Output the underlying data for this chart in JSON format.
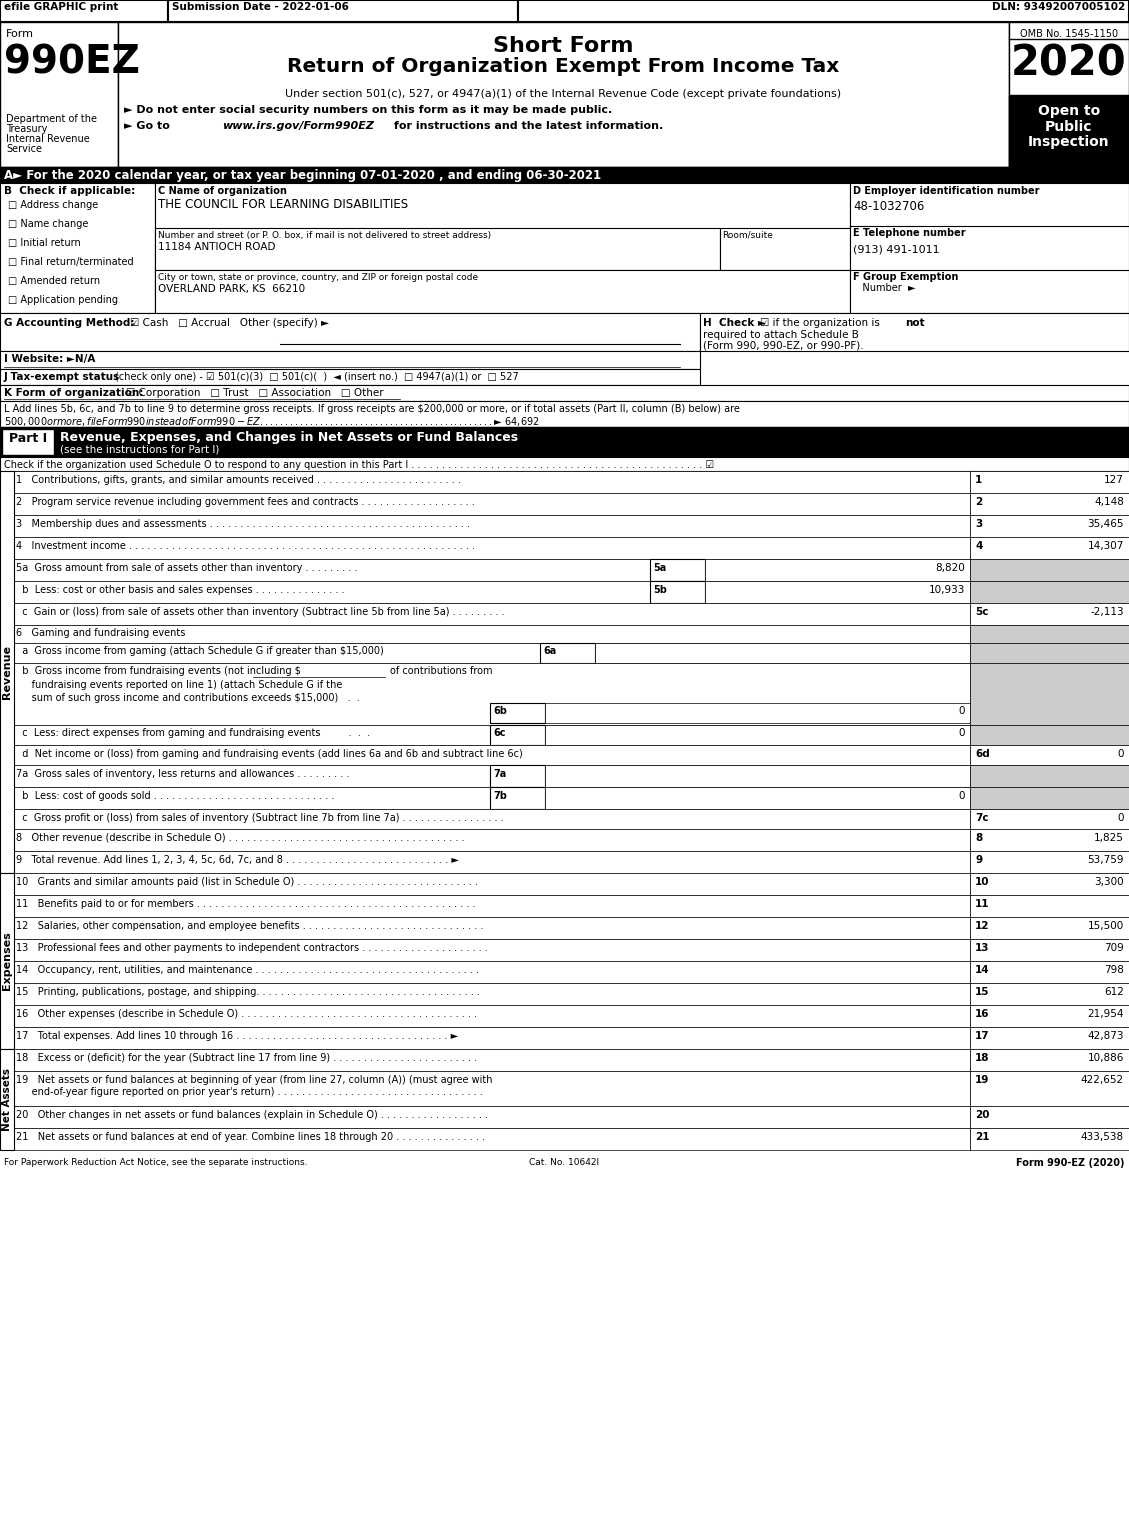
{
  "title_top_bar": "efile GRAPHIC print    Submission Date - 2022-01-06                                              DLN: 93492007005102",
  "form_number": "990EZ",
  "form_label": "Form",
  "short_form_title": "Short Form",
  "main_title": "Return of Organization Exempt From Income Tax",
  "subtitle": "Under section 501(c), 527, or 4947(a)(1) of the Internal Revenue Code (except private foundations)",
  "year": "2020",
  "omb": "OMB No. 1545-1150",
  "open_to": "Open to\nPublic\nInspection",
  "bullet1": "► Do not enter social security numbers on this form as it may be made public.",
  "bullet2_a": "► Go to ",
  "bullet2_url": "www.irs.gov/Form990EZ",
  "bullet2_b": " for instructions and the latest information.",
  "dept_label": "Department of the\nTreasury\nInternal Revenue\nService",
  "section_A": "A► For the 2020 calendar year, or tax year beginning 07-01-2020 , and ending 06-30-2021",
  "B_label": "B  Check if applicable:",
  "checkboxes_B": [
    "□ Address change",
    "□ Name change",
    "□ Initial return",
    "□ Final return/terminated",
    "□ Amended return",
    "□ Application pending"
  ],
  "C_label": "C Name of organization",
  "org_name": "THE COUNCIL FOR LEARNING DISABILITIES",
  "street_label": "Number and street (or P. O. box, if mail is not delivered to street address)",
  "room_label": "Room/suite",
  "street_value": "11184 ANTIOCH ROAD",
  "city_label": "City or town, state or province, country, and ZIP or foreign postal code",
  "city_value": "OVERLAND PARK, KS  66210",
  "D_label": "D Employer identification number",
  "ein": "48-1032706",
  "E_label": "E Telephone number",
  "phone": "(913) 491-1011",
  "F_label": "F Group Exemption",
  "F_label2": "   Number  ►",
  "G_label": "G Accounting Method:",
  "G_content": "☑ Cash   □ Accrual   Other (specify) ►",
  "H_label": "H  Check ►",
  "H_content1": "☑ if the organization is ",
  "H_content1b": "not",
  "H_content2": "required to attach Schedule B",
  "H_content3": "(Form 990, 990-EZ, or 990-PF).",
  "I_label": "I Website: ►N/A",
  "J_label": "J Tax-exempt status",
  "J_content": "(check only one) - ☑ 501(c)(3)  □ 501(c)(  )  ◄ (insert no.)  □ 4947(a)(1) or  □ 527",
  "K_label": "K Form of organization:",
  "K_content": "☑ Corporation   □ Trust   □ Association   □ Other",
  "L_line1": "L Add lines 5b, 6c, and 7b to line 9 to determine gross receipts. If gross receipts are $200,000 or more, or if total assets (Part II, column (B) below) are",
  "L_line2": "$500,000 or more, file Form 990 instead of Form 990-EZ . . . . . . . . . . . . . . . . . . . . . . . . . . . . . . . . . . . . . . . . . . . . . . . ► $ 64,692",
  "part1_heading": "Revenue, Expenses, and Changes in Net Assets or Fund Balances",
  "part1_sub": "(see the instructions for Part I)",
  "part1_check": "Check if the organization used Schedule O to respond to any question in this Part I . . . . . . . . . . . . . . . . . . . . . . . . . . . . . . . . . . . . . . . . . . . . . . . . ☑",
  "revenue_lines": [
    {
      "num": "1",
      "label": "Contributions, gifts, grants, and similar amounts received . . . . . . . . . . . . . . . . . . . . . . . .",
      "value": "127",
      "line_num": "1"
    },
    {
      "num": "2",
      "label": "Program service revenue including government fees and contracts . . . . . . . . . . . . . . . . . . .",
      "value": "4,148",
      "line_num": "2"
    },
    {
      "num": "3",
      "label": "Membership dues and assessments . . . . . . . . . . . . . . . . . . . . . . . . . . . . . . . . . . . . . . . . . . .",
      "value": "35,465",
      "line_num": "3"
    },
    {
      "num": "4",
      "label": "Investment income . . . . . . . . . . . . . . . . . . . . . . . . . . . . . . . . . . . . . . . . . . . . . . . . . . . . . . . . .",
      "value": "14,307",
      "line_num": "4"
    }
  ],
  "line5a_label": "5a  Gross amount from sale of assets other than inventory . . . . . . . . .",
  "line5a_val": "8,820",
  "line5b_label": "  b  Less: cost or other basis and sales expenses . . . . . . . . . . . . . . .",
  "line5b_val": "10,933",
  "line5c_label": "  c  Gain or (loss) from sale of assets other than inventory (Subtract line 5b from line 5a) . . . . . . . . .",
  "line5c_val": "-2,113",
  "line6_label": "6   Gaming and fundraising events",
  "line6a_label": "  a  Gross income from gaming (attach Schedule G if greater than $15,000)",
  "line6b_line1": "  b  Gross income from fundraising events (not including $",
  "line6b_line1b": "of contributions from",
  "line6b_line2": "     fundraising events reported on line 1) (attach Schedule G if the",
  "line6b_line3": "     sum of such gross income and contributions exceeds $15,000)   .  .",
  "line6b_val": "0",
  "line6c_label": "  c  Less: direct expenses from gaming and fundraising events         .  .  .",
  "line6c_val": "0",
  "line6d_label": "  d  Net income or (loss) from gaming and fundraising events (add lines 6a and 6b and subtract line 6c)",
  "line6d_val": "0",
  "line7a_label": "7a  Gross sales of inventory, less returns and allowances . . . . . . . . .",
  "line7b_label": "  b  Less: cost of goods sold . . . . . . . . . . . . . . . . . . . . . . . . . . . . . .",
  "line7b_val": "0",
  "line7c_label": "  c  Gross profit or (loss) from sales of inventory (Subtract line 7b from line 7a) . . . . . . . . . . . . . . . . .",
  "line7c_val": "0",
  "line8_label": "8   Other revenue (describe in Schedule O) . . . . . . . . . . . . . . . . . . . . . . . . . . . . . . . . . . . . . . .",
  "line8_val": "1,825",
  "line9_label": "9   Total revenue. Add lines 1, 2, 3, 4, 5c, 6d, 7c, and 8 . . . . . . . . . . . . . . . . . . . . . . . . . . . ►",
  "line9_val": "53,759",
  "expense_lines": [
    {
      "num": "10",
      "label": "Grants and similar amounts paid (list in Schedule O) . . . . . . . . . . . . . . . . . . . . . . . . . . . . . .",
      "value": "3,300",
      "line_num": "10"
    },
    {
      "num": "11",
      "label": "Benefits paid to or for members . . . . . . . . . . . . . . . . . . . . . . . . . . . . . . . . . . . . . . . . . . . . . .",
      "value": "",
      "line_num": "11"
    },
    {
      "num": "12",
      "label": "Salaries, other compensation, and employee benefits . . . . . . . . . . . . . . . . . . . . . . . . . . . . . .",
      "value": "15,500",
      "line_num": "12"
    },
    {
      "num": "13",
      "label": "Professional fees and other payments to independent contractors . . . . . . . . . . . . . . . . . . . . .",
      "value": "709",
      "line_num": "13"
    },
    {
      "num": "14",
      "label": "Occupancy, rent, utilities, and maintenance . . . . . . . . . . . . . . . . . . . . . . . . . . . . . . . . . . . . .",
      "value": "798",
      "line_num": "14"
    },
    {
      "num": "15",
      "label": "Printing, publications, postage, and shipping. . . . . . . . . . . . . . . . . . . . . . . . . . . . . . . . . . . . .",
      "value": "612",
      "line_num": "15"
    },
    {
      "num": "16",
      "label": "Other expenses (describe in Schedule O) . . . . . . . . . . . . . . . . . . . . . . . . . . . . . . . . . . . . . . .",
      "value": "21,954",
      "line_num": "16"
    },
    {
      "num": "17",
      "label": "Total expenses. Add lines 10 through 16 . . . . . . . . . . . . . . . . . . . . . . . . . . . . . . . . . . . ►",
      "value": "42,873",
      "line_num": "17"
    }
  ],
  "net_asset_lines": [
    {
      "num": "18",
      "label": "Excess or (deficit) for the year (Subtract line 17 from line 9) . . . . . . . . . . . . . . . . . . . . . . . .",
      "value": "10,886",
      "line_num": "18"
    },
    {
      "num": "19",
      "label1": "Net assets or fund balances at beginning of year (from line 27, column (A)) (must agree with",
      "label2": "end-of-year figure reported on prior year's return) . . . . . . . . . . . . . . . . . . . . . . . . . . . . . . . . . .",
      "value": "422,652",
      "line_num": "19"
    },
    {
      "num": "20",
      "label": "Other changes in net assets or fund balances (explain in Schedule O) . . . . . . . . . . . . . . . . . .",
      "value": "",
      "line_num": "20"
    },
    {
      "num": "21",
      "label": "Net assets or fund balances at end of year. Combine lines 18 through 20 . . . . . . . . . . . . . . .",
      "value": "433,538",
      "line_num": "21"
    }
  ],
  "footer_left": "For Paperwork Reduction Act Notice, see the separate instructions.",
  "footer_cat": "Cat. No. 10642I",
  "footer_right": "Form 990-EZ (2020)"
}
